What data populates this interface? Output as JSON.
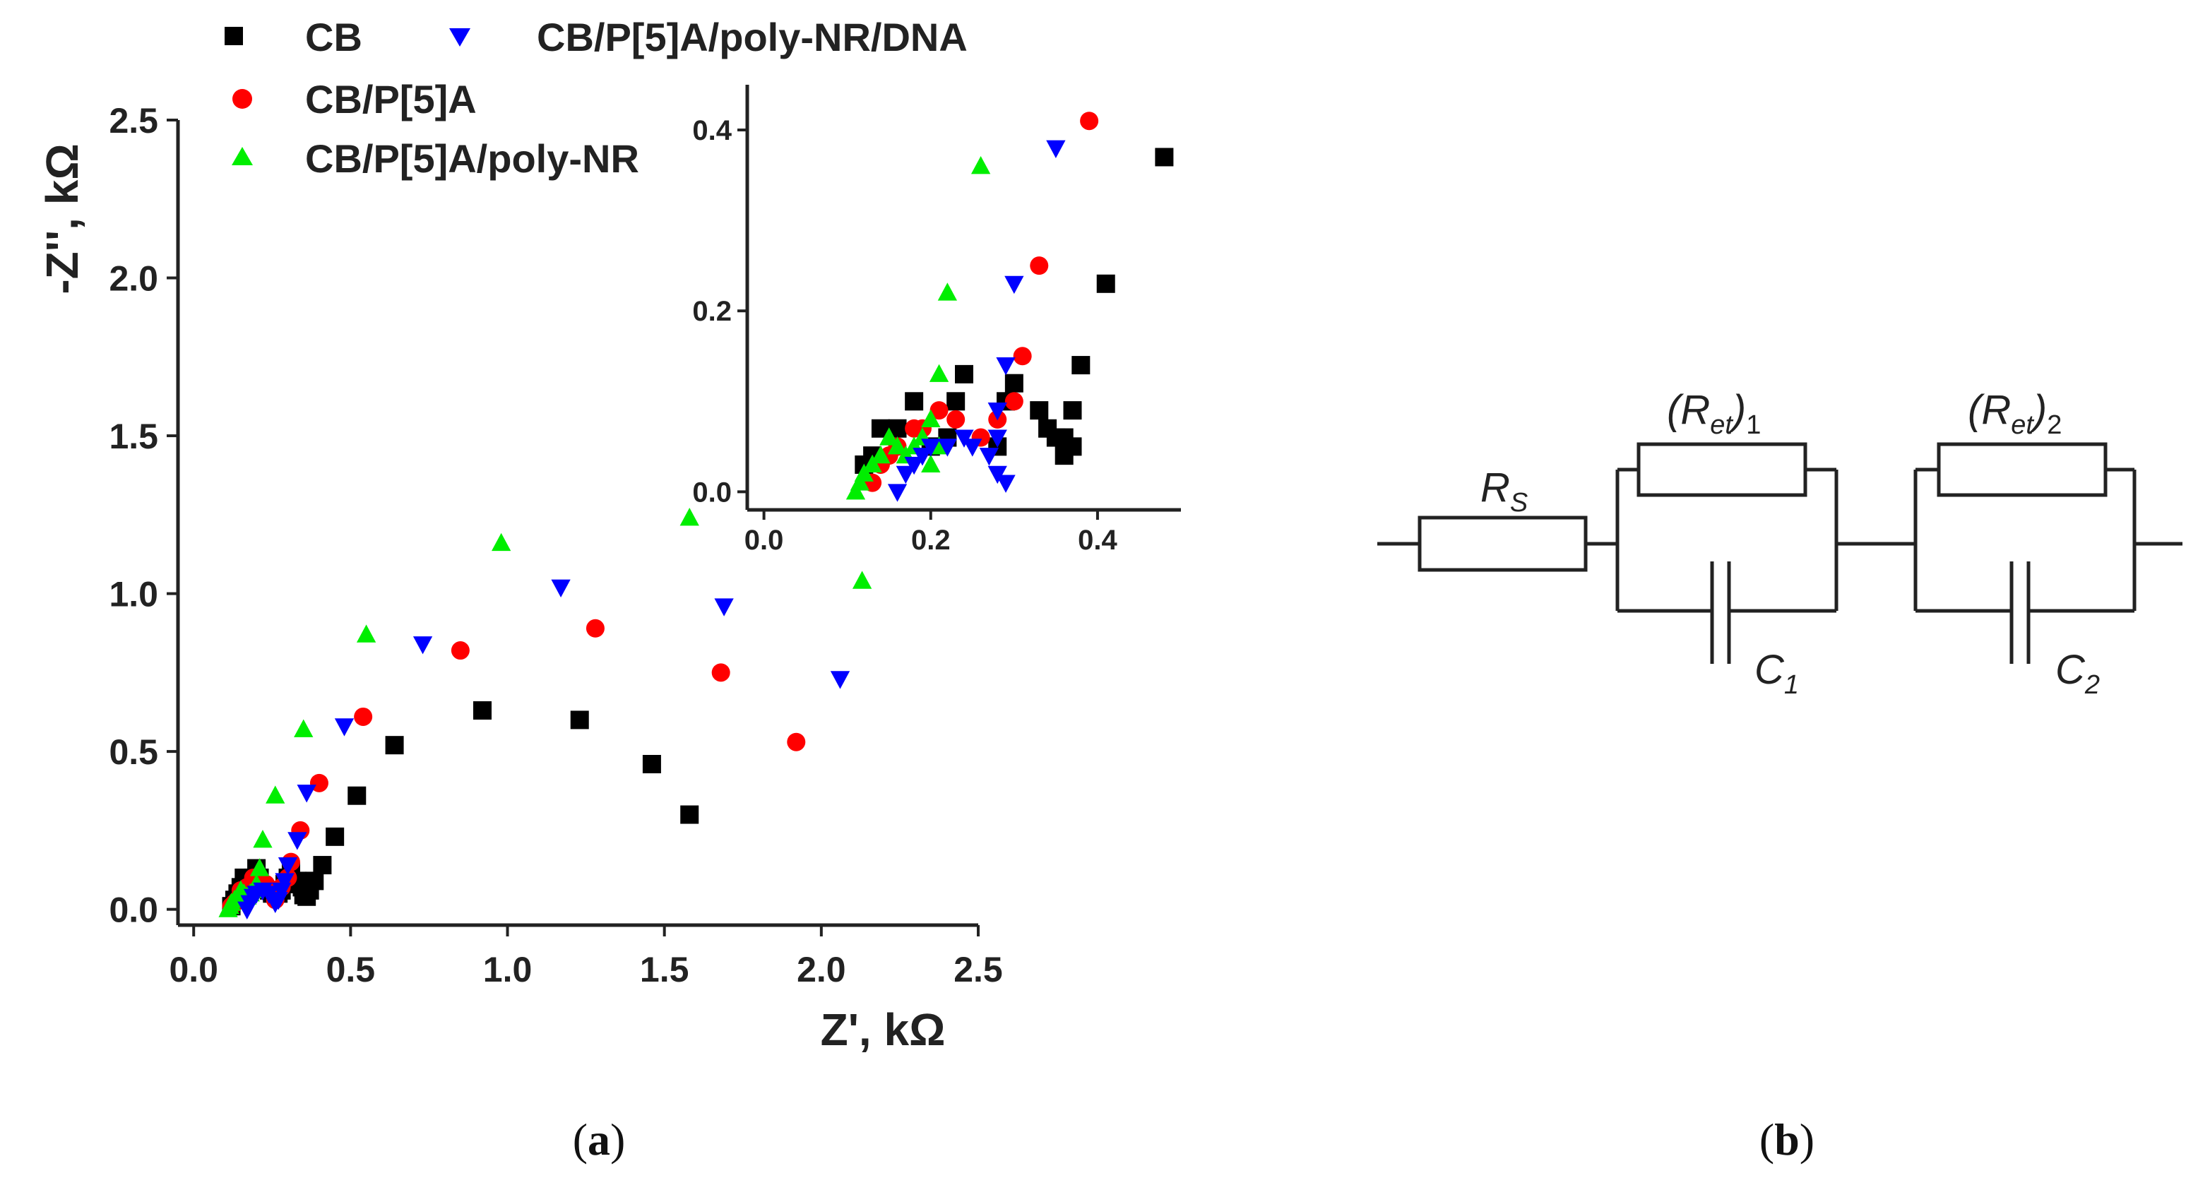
{
  "chart_data": {
    "type": "scatter",
    "title": "",
    "xlabel": "Z', kΩ",
    "ylabel": "-Z'', kΩ",
    "xlim": [
      -0.05,
      2.5
    ],
    "ylim": [
      -0.05,
      2.5
    ],
    "xticks": [
      "0.0",
      "0.5",
      "1.0",
      "1.5",
      "2.0",
      "2.5"
    ],
    "yticks": [
      "0.0",
      "0.5",
      "1.0",
      "1.5",
      "2.0",
      "2.5"
    ],
    "legend": {
      "placement": "top-left"
    },
    "series": [
      {
        "name": "CB",
        "color": "#000000",
        "marker": "square",
        "x": [
          1.58,
          1.46,
          1.23,
          0.92,
          0.64,
          0.52,
          0.45,
          0.41,
          0.385,
          0.37,
          0.36,
          0.35,
          0.345,
          0.33,
          0.31,
          0.3,
          0.29,
          0.28,
          0.27,
          0.25,
          0.24,
          0.22,
          0.21,
          0.2,
          0.19,
          0.18,
          0.17,
          0.16,
          0.15,
          0.14,
          0.13,
          0.12
        ],
        "y": [
          0.3,
          0.46,
          0.6,
          0.63,
          0.52,
          0.36,
          0.23,
          0.14,
          0.09,
          0.06,
          0.04,
          0.045,
          0.07,
          0.09,
          0.12,
          0.1,
          0.08,
          0.06,
          0.05,
          0.05,
          0.06,
          0.07,
          0.1,
          0.13,
          0.1,
          0.09,
          0.09,
          0.1,
          0.07,
          0.05,
          0.03,
          0.01
        ]
      },
      {
        "name": "CB/P[5]A",
        "color": "#ff0000",
        "marker": "circle",
        "x": [
          1.92,
          1.68,
          1.28,
          0.85,
          0.54,
          0.4,
          0.34,
          0.31,
          0.3,
          0.28,
          0.27,
          0.26,
          0.23,
          0.21,
          0.19,
          0.17,
          0.16,
          0.15,
          0.14,
          0.13,
          0.12
        ],
        "y": [
          0.53,
          0.75,
          0.89,
          0.82,
          0.61,
          0.4,
          0.25,
          0.15,
          0.1,
          0.07,
          0.06,
          0.03,
          0.08,
          0.09,
          0.1,
          0.07,
          0.05,
          0.06,
          0.03,
          0.02,
          0.01
        ]
      },
      {
        "name": "CB/P[5]A/poly-NR",
        "color": "#00ee00",
        "marker": "triangle-up",
        "x": [
          2.13,
          1.58,
          0.98,
          0.55,
          0.35,
          0.26,
          0.22,
          0.21,
          0.2,
          0.19,
          0.18,
          0.17,
          0.16,
          0.15,
          0.14,
          0.13,
          0.12,
          0.115,
          0.11
        ],
        "y": [
          1.04,
          1.24,
          1.16,
          0.87,
          0.57,
          0.36,
          0.22,
          0.13,
          0.08,
          0.06,
          0.05,
          0.04,
          0.05,
          0.06,
          0.04,
          0.03,
          0.02,
          0.01,
          0.0
        ]
      },
      {
        "name": "CB/P[5]A/poly-NR/DNA",
        "color": "#0000ff",
        "marker": "triangle-down",
        "x": [
          2.06,
          1.69,
          1.17,
          0.73,
          0.48,
          0.36,
          0.33,
          0.3,
          0.29,
          0.28,
          0.27,
          0.26,
          0.24,
          0.22,
          0.2,
          0.19,
          0.18,
          0.17
        ],
        "y": [
          0.73,
          0.96,
          1.02,
          0.84,
          0.58,
          0.37,
          0.22,
          0.14,
          0.09,
          0.06,
          0.03,
          0.02,
          0.05,
          0.06,
          0.05,
          0.04,
          0.02,
          0.0
        ]
      }
    ],
    "inset": {
      "xlim": [
        -0.02,
        0.5
      ],
      "ylim": [
        -0.02,
        0.45
      ],
      "xticks": [
        "0.0",
        "0.2",
        "0.4"
      ],
      "yticks": [
        "0.0",
        "0.2",
        "0.4"
      ],
      "series": [
        {
          "name": "CB",
          "color": "#000000",
          "marker": "square",
          "x": [
            0.48,
            0.41,
            0.38,
            0.37,
            0.36,
            0.34,
            0.33,
            0.3,
            0.29,
            0.28,
            0.24,
            0.23,
            0.22,
            0.2,
            0.18,
            0.16,
            0.14,
            0.13,
            0.12,
            0.36,
            0.37,
            0.35
          ],
          "y": [
            0.37,
            0.23,
            0.14,
            0.09,
            0.06,
            0.07,
            0.09,
            0.12,
            0.1,
            0.05,
            0.13,
            0.1,
            0.06,
            0.05,
            0.1,
            0.07,
            0.07,
            0.04,
            0.03,
            0.04,
            0.05,
            0.06
          ]
        },
        {
          "name": "CB/P[5]A",
          "color": "#ff0000",
          "marker": "circle",
          "x": [
            0.39,
            0.33,
            0.31,
            0.3,
            0.28,
            0.26,
            0.23,
            0.21,
            0.19,
            0.18,
            0.16,
            0.15,
            0.14,
            0.13
          ],
          "y": [
            0.41,
            0.25,
            0.15,
            0.1,
            0.08,
            0.06,
            0.08,
            0.09,
            0.07,
            0.07,
            0.05,
            0.04,
            0.03,
            0.01
          ]
        },
        {
          "name": "CB/P[5]A/poly-NR",
          "color": "#00ee00",
          "marker": "triangle-up",
          "x": [
            0.26,
            0.22,
            0.21,
            0.2,
            0.21,
            0.2,
            0.19,
            0.18,
            0.17,
            0.16,
            0.15,
            0.14,
            0.13,
            0.12,
            0.115,
            0.11
          ],
          "y": [
            0.36,
            0.22,
            0.13,
            0.08,
            0.05,
            0.03,
            0.06,
            0.05,
            0.04,
            0.05,
            0.06,
            0.04,
            0.03,
            0.02,
            0.01,
            0.0
          ]
        },
        {
          "name": "CB/P[5]A/poly-NR/DNA",
          "color": "#0000ff",
          "marker": "triangle-down",
          "x": [
            0.35,
            0.3,
            0.29,
            0.28,
            0.28,
            0.27,
            0.25,
            0.24,
            0.22,
            0.2,
            0.19,
            0.18,
            0.17,
            0.16,
            0.28,
            0.29
          ],
          "y": [
            0.38,
            0.23,
            0.14,
            0.09,
            0.06,
            0.04,
            0.05,
            0.06,
            0.05,
            0.05,
            0.04,
            0.03,
            0.02,
            0.0,
            0.02,
            0.01
          ]
        }
      ]
    }
  },
  "circuit": {
    "rs_label": "R",
    "rs_sub": "S",
    "ret1_open": "(R",
    "ret1_sub_et": "et",
    "ret1_close": ")",
    "ret1_sub_n": "1",
    "ret2_open": "(R",
    "ret2_sub_et": "et",
    "ret2_close": ")",
    "ret2_sub_n": "2",
    "c1_label": "C",
    "c1_sub": "1",
    "c2_label": "C",
    "c2_sub": "2"
  },
  "panels": {
    "a_open": "(",
    "a_letter": "a",
    "a_close": ")",
    "b_open": "(",
    "b_letter": "b",
    "b_close": ")"
  }
}
